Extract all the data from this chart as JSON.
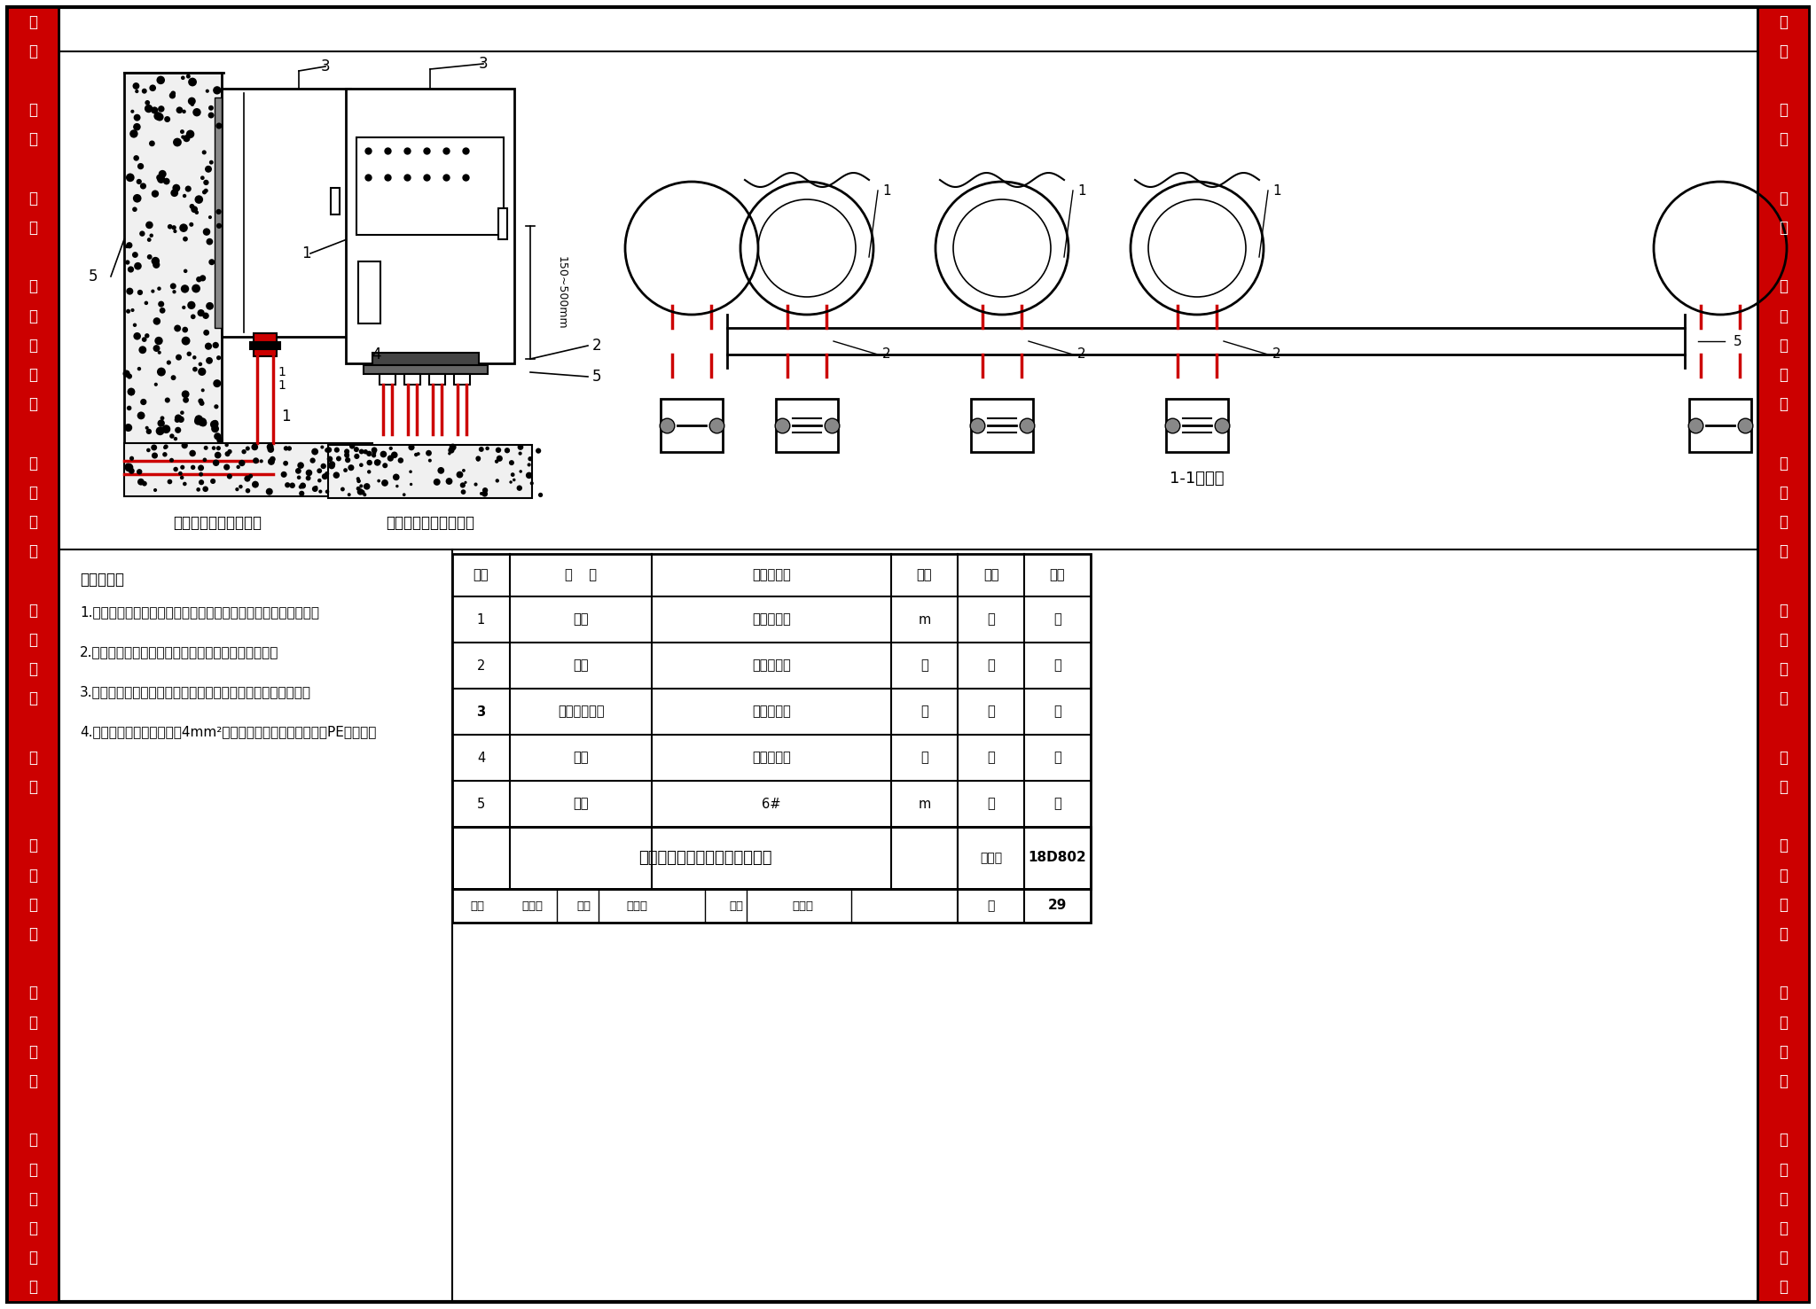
{
  "page_bg": "#ffffff",
  "border_color": "#000000",
  "red_color": "#cc0000",
  "title": "导管与配电柜（箱）连接示意图",
  "figure_num": "18D802",
  "page_num": "29",
  "sidebar_chars": [
    "设",
    "备",
    "",
    "桥",
    "架",
    "",
    "导",
    "管",
    "",
    "穿",
    "越",
    "变",
    "形",
    "缝",
    "",
    "电",
    "缆",
    "敷",
    "设",
    "",
    "配",
    "线",
    "母",
    "线",
    "",
    "灯",
    "具",
    "",
    "开",
    "关",
    "插",
    "座",
    "",
    "接",
    "地",
    "封",
    "堵",
    "",
    "测",
    "试",
    "技",
    "术",
    "资",
    "料"
  ],
  "install_notes_title": "安装说明：",
  "install_notes": [
    "1.箱体开孔与导管管径适配，应一管一孔，不得用电、气焊割孔。",
    "2.配电箱的金属框架和金属导管均应与保护导体连接。",
    "3.进入箱体导管应加装护口或专用接头，防止穿线时损伤线缆。",
    "4.金属导管进箱处用不小于4mm²黄绿色铜芯软导线与配电箱内PE排连接。"
  ],
  "diagram1_label": "配电箱明装配管示意图",
  "diagram2_label": "配电箱明装配管示意图",
  "diagram3_label": "1-1大样图",
  "table_headers": [
    "编号",
    "名    称",
    "型号及规格",
    "单位",
    "数量",
    "备注"
  ],
  "table_rows": [
    [
      "1",
      "导管",
      "按设计要求",
      "m",
      "－",
      "－"
    ],
    [
      "2",
      "管卡",
      "与导管适配",
      "个",
      "－",
      "－"
    ],
    [
      "3",
      "配电柜（箱）",
      "按设计要求",
      "个",
      "－",
      "－"
    ],
    [
      "4",
      "护口",
      "与导管适配",
      "个",
      "－",
      "－"
    ],
    [
      "5",
      "槽钢",
      "6#",
      "m",
      "－",
      "－"
    ]
  ],
  "dim_text": "150~500mm",
  "table_col_widths": [
    65,
    160,
    270,
    75,
    75,
    75
  ],
  "table_row_heights": [
    48,
    52,
    52,
    52,
    52,
    52,
    70,
    38
  ]
}
